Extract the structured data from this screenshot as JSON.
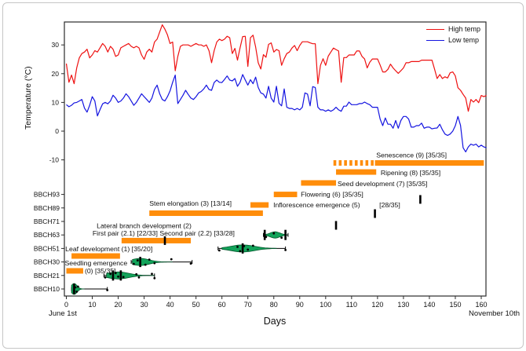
{
  "figure": {
    "border_color": "#c6c6c6",
    "background": "#ffffff"
  },
  "axes": {
    "y_title": "Temperature (°C)",
    "x_title": "Days",
    "start_date": "June 1st",
    "end_date": "November 10th"
  },
  "legend": {
    "items": [
      {
        "label": "High temp",
        "color": "#ee1111"
      },
      {
        "label": "Low temp",
        "color": "#1414e0"
      }
    ]
  },
  "chart_data": {
    "type": "composite (line + gantt bars + violin)",
    "xaxis": {
      "label": "Days",
      "range": [
        0,
        163
      ],
      "ticks": [
        0,
        10,
        20,
        30,
        40,
        50,
        60,
        70,
        80,
        90,
        100,
        110,
        120,
        130,
        140,
        150,
        160
      ],
      "start_annotation": "June 1st",
      "end_annotation": "November 10th"
    },
    "temperature": {
      "type": "line",
      "ylabel": "Temperature (°C)",
      "yticks": [
        -10,
        0,
        10,
        20,
        30
      ],
      "ylim": [
        -12,
        39
      ],
      "series": [
        {
          "name": "High temp",
          "color": "#ee1111",
          "values": [
            23.5,
            17,
            19.5,
            16.5,
            22,
            25.5,
            27,
            27.5,
            28.5,
            25.5,
            26.5,
            28,
            27.5,
            29,
            30.5,
            29.5,
            27.5,
            29.5,
            28.5,
            26,
            26.5,
            29,
            29.5,
            30,
            30.5,
            29.5,
            29,
            29.5,
            29,
            26.5,
            25,
            27.5,
            28.5,
            27.5,
            31,
            32,
            34.5,
            37,
            35.5,
            33.5,
            30.5,
            31,
            21,
            26,
            29.5,
            30,
            30,
            30,
            29.5,
            30,
            30.5,
            30,
            30,
            29.5,
            30,
            28,
            23.8,
            28,
            31,
            32,
            31.5,
            32,
            33,
            32.5,
            27,
            28.8,
            24.7,
            29,
            32.9,
            33,
            22.5,
            32.5,
            33.4,
            29.3,
            23.8,
            21.6,
            26.6,
            25.7,
            30.2,
            30.7,
            27.5,
            28.4,
            28,
            22.9,
            25.2,
            27,
            27.5,
            28.9,
            29.8,
            28,
            29.8,
            31.1,
            31.1,
            31.1,
            30.7,
            30.4,
            30.4,
            16.5,
            22.9,
            25.2,
            22.9,
            26.1,
            27.5,
            28.9,
            28.4,
            27.9,
            17,
            25.6,
            25.6,
            26.5,
            26.5,
            26.5,
            27.9,
            27.9,
            26,
            25.1,
            22,
            24,
            25.1,
            25.1,
            25.1,
            23,
            20.6,
            20.6,
            21.5,
            23.3,
            22,
            21,
            20.1,
            21,
            22,
            23.8,
            23.8,
            24.2,
            24.2,
            24.2,
            24.2,
            24.7,
            24.7,
            24.7,
            24.7,
            24.7,
            21.6,
            18.3,
            19.7,
            18.3,
            18.9,
            18.5,
            20.3,
            20.6,
            19.2,
            15.1,
            14.2,
            12.8,
            11.5,
            6.9,
            11,
            10.1,
            11,
            9.9,
            12.4,
            12,
            12.4
          ]
        },
        {
          "name": "Low temp",
          "color": "#1414e0",
          "values": [
            9.2,
            8.5,
            9,
            9.8,
            10,
            10.5,
            11,
            8,
            6.6,
            9,
            12,
            10.5,
            5.3,
            7.5,
            9.5,
            10,
            9.5,
            10.5,
            12.5,
            11.5,
            10,
            10.5,
            11.5,
            13,
            12,
            10.5,
            9,
            10,
            11.5,
            13,
            12,
            11,
            10,
            11.5,
            14.5,
            16,
            13,
            11,
            10.5,
            12,
            14,
            17,
            19.5,
            9.6,
            11,
            12.5,
            14.2,
            12.8,
            11.5,
            11,
            12,
            13.3,
            13.8,
            14.7,
            16,
            14.5,
            14.2,
            16.9,
            17.8,
            17,
            16.9,
            18,
            19.2,
            17.8,
            17.5,
            18.3,
            15.6,
            17,
            19.7,
            17.8,
            16,
            17.9,
            16.5,
            18.8,
            15.2,
            13.3,
            12.9,
            11.5,
            15.6,
            11.5,
            10.1,
            15.6,
            9.7,
            8.8,
            14.7,
            8.3,
            7.9,
            7.9,
            7.4,
            7.9,
            7.4,
            8.3,
            13.3,
            12.9,
            8.8,
            15.5,
            15.2,
            8.3,
            7.4,
            7.4,
            6.9,
            7.4,
            6.9,
            7.4,
            8.3,
            7.4,
            6.9,
            8.7,
            8.7,
            10.1,
            9.2,
            9.2,
            9.2,
            9.6,
            9.6,
            10.1,
            9.6,
            9.2,
            8.3,
            8.3,
            8.3,
            4.2,
            1.9,
            4.6,
            2.4,
            2.4,
            1,
            3.7,
            1,
            3.7,
            5.1,
            5.1,
            4.2,
            1.4,
            1.4,
            1.9,
            1.9,
            2.8,
            1,
            1.4,
            1.4,
            0.8,
            1,
            1.1,
            2.4,
            0.5,
            -1,
            -1.5,
            -1,
            0,
            1.9,
            5.1,
            2,
            -5.8,
            -7.2,
            -5.5,
            -4.5,
            -4.9,
            -4.5,
            -5.5,
            -4.9,
            -5.5,
            -5.8
          ]
        }
      ]
    },
    "bbch_rows": [
      "BBCH10",
      "BBCH21",
      "BBCH30",
      "BBCH51",
      "BBCH63",
      "BBCH71",
      "BBCH89",
      "BBCH93"
    ],
    "stage_bar_color": "#ff8d0a",
    "stage_bars": [
      {
        "name": "seedling-emergence-bar",
        "start": 0,
        "end": 6.5,
        "row": 1.34,
        "style": "solid"
      },
      {
        "name": "leaf-development-bar",
        "start": 2,
        "end": 20.7,
        "row": 2.44,
        "style": "solid"
      },
      {
        "name": "leaf-pairs-bar",
        "start": 21.3,
        "end": 48,
        "row": 3.58,
        "style": "solid"
      },
      {
        "name": "stem-elongation-bar",
        "start": 32,
        "end": 75.8,
        "row": 5.61,
        "style": "solid"
      },
      {
        "name": "inflorescence-emergence-bar",
        "start": 71,
        "end": 78,
        "row": 6.22,
        "style": "solid"
      },
      {
        "name": "flowering-bar",
        "start": 80,
        "end": 89,
        "row": 7.0,
        "style": "solid"
      },
      {
        "name": "seed-development-bar",
        "start": 90.5,
        "end": 104,
        "row": 7.85,
        "style": "solid"
      },
      {
        "name": "ripening-bar",
        "start": 104,
        "end": 119.5,
        "row": 8.66,
        "style": "solid"
      },
      {
        "name": "senescence-onset-bar",
        "start": 103,
        "end": 119,
        "row": 9.33,
        "style": "dashed"
      },
      {
        "name": "senescence-bar",
        "start": 119,
        "end": 161,
        "row": 9.33,
        "style": "solid"
      }
    ],
    "stage_labels": [
      {
        "text": "Seedling emergence",
        "day": -0.6,
        "row": 1.92,
        "anchor": "start"
      },
      {
        "text": "(0) [35/35]",
        "day": 7.1,
        "row": 1.34,
        "anchor": "start"
      },
      {
        "text": "Leaf development (1) [35/20]",
        "day": -0.4,
        "row": 2.97,
        "anchor": "start"
      },
      {
        "text": "First pair (2.1) [22/33] Second pair (2.2) [33/28]",
        "day": 10.1,
        "row": 4.13,
        "anchor": "start"
      },
      {
        "text": "Lateral branch development (2)",
        "day": 11.7,
        "row": 4.68,
        "anchor": "start"
      },
      {
        "text": "Stem elongation (3) [13/14]",
        "day": 32,
        "row": 6.34,
        "anchor": "start"
      },
      {
        "text": "Inflorescence emergence (5)",
        "day": 79.8,
        "row": 6.22,
        "anchor": "start"
      },
      {
        "text": "[28/35]",
        "day": 120.7,
        "row": 6.22,
        "anchor": "start"
      },
      {
        "text": "Flowering (6) [35/35]",
        "day": 90.4,
        "row": 7.0,
        "anchor": "start"
      },
      {
        "text": "Seed development (7) [35/35]",
        "day": 104.6,
        "row": 7.79,
        "anchor": "start"
      },
      {
        "text": "Ripening (8) [35/35]",
        "day": 121.2,
        "row": 8.6,
        "anchor": "start"
      },
      {
        "text": "Senescence (9) [35/35]",
        "day": 119.5,
        "row": 9.9,
        "anchor": "start"
      }
    ],
    "event_markers": [
      {
        "day": 38,
        "row": 3.58
      },
      {
        "day": 104,
        "row": 4.71
      },
      {
        "day": 119,
        "row": 5.58
      },
      {
        "day": 136.5,
        "row": 6.63
      }
    ],
    "violin_color": "#12a35a",
    "violins": [
      {
        "bbch": "BBCH10",
        "row": 0,
        "whisker": [
          2,
          15.8
        ],
        "violin": [
          2,
          7
        ],
        "peak": 3,
        "half_height": 7,
        "median_ticks": [
          3
        ],
        "points": [
          3,
          3.5,
          4,
          4.5,
          15.8
        ]
      },
      {
        "bbch": "BBCH21",
        "row": 1,
        "whisker": [
          14.5,
          34
        ],
        "violin": [
          15.5,
          34
        ],
        "peak": 20,
        "half_height": 4.5,
        "median_ticks": [
          18,
          21
        ],
        "points": [
          15,
          17,
          18,
          19,
          20,
          21,
          22,
          27,
          28,
          33,
          34
        ]
      },
      {
        "bbch": "BBCH30",
        "row": 2,
        "whisker": [
          25,
          48.5
        ],
        "violin": [
          25.5,
          41
        ],
        "peak": 28.5,
        "half_height": 4.5,
        "median_ticks": [
          28.5
        ],
        "points": [
          26,
          27.5,
          30.5,
          32,
          34,
          40.5,
          48
        ]
      },
      {
        "bbch": "BBCH51",
        "row": 3,
        "whisker": [
          58.5,
          84.5
        ],
        "violin": [
          60,
          81
        ],
        "peak": 68,
        "half_height": 4.5,
        "median_ticks": [
          68
        ],
        "points": [
          59,
          66,
          67,
          68.5,
          70,
          72,
          84.5
        ]
      },
      {
        "bbch": "BBCH63",
        "row": 4,
        "whisker": [
          76,
          85.5
        ],
        "violin": [
          76.5,
          85
        ],
        "peak": 80.5,
        "half_height": 4,
        "median_ticks": [
          76.5,
          84.5
        ],
        "points": [
          77,
          80,
          83
        ]
      }
    ]
  }
}
